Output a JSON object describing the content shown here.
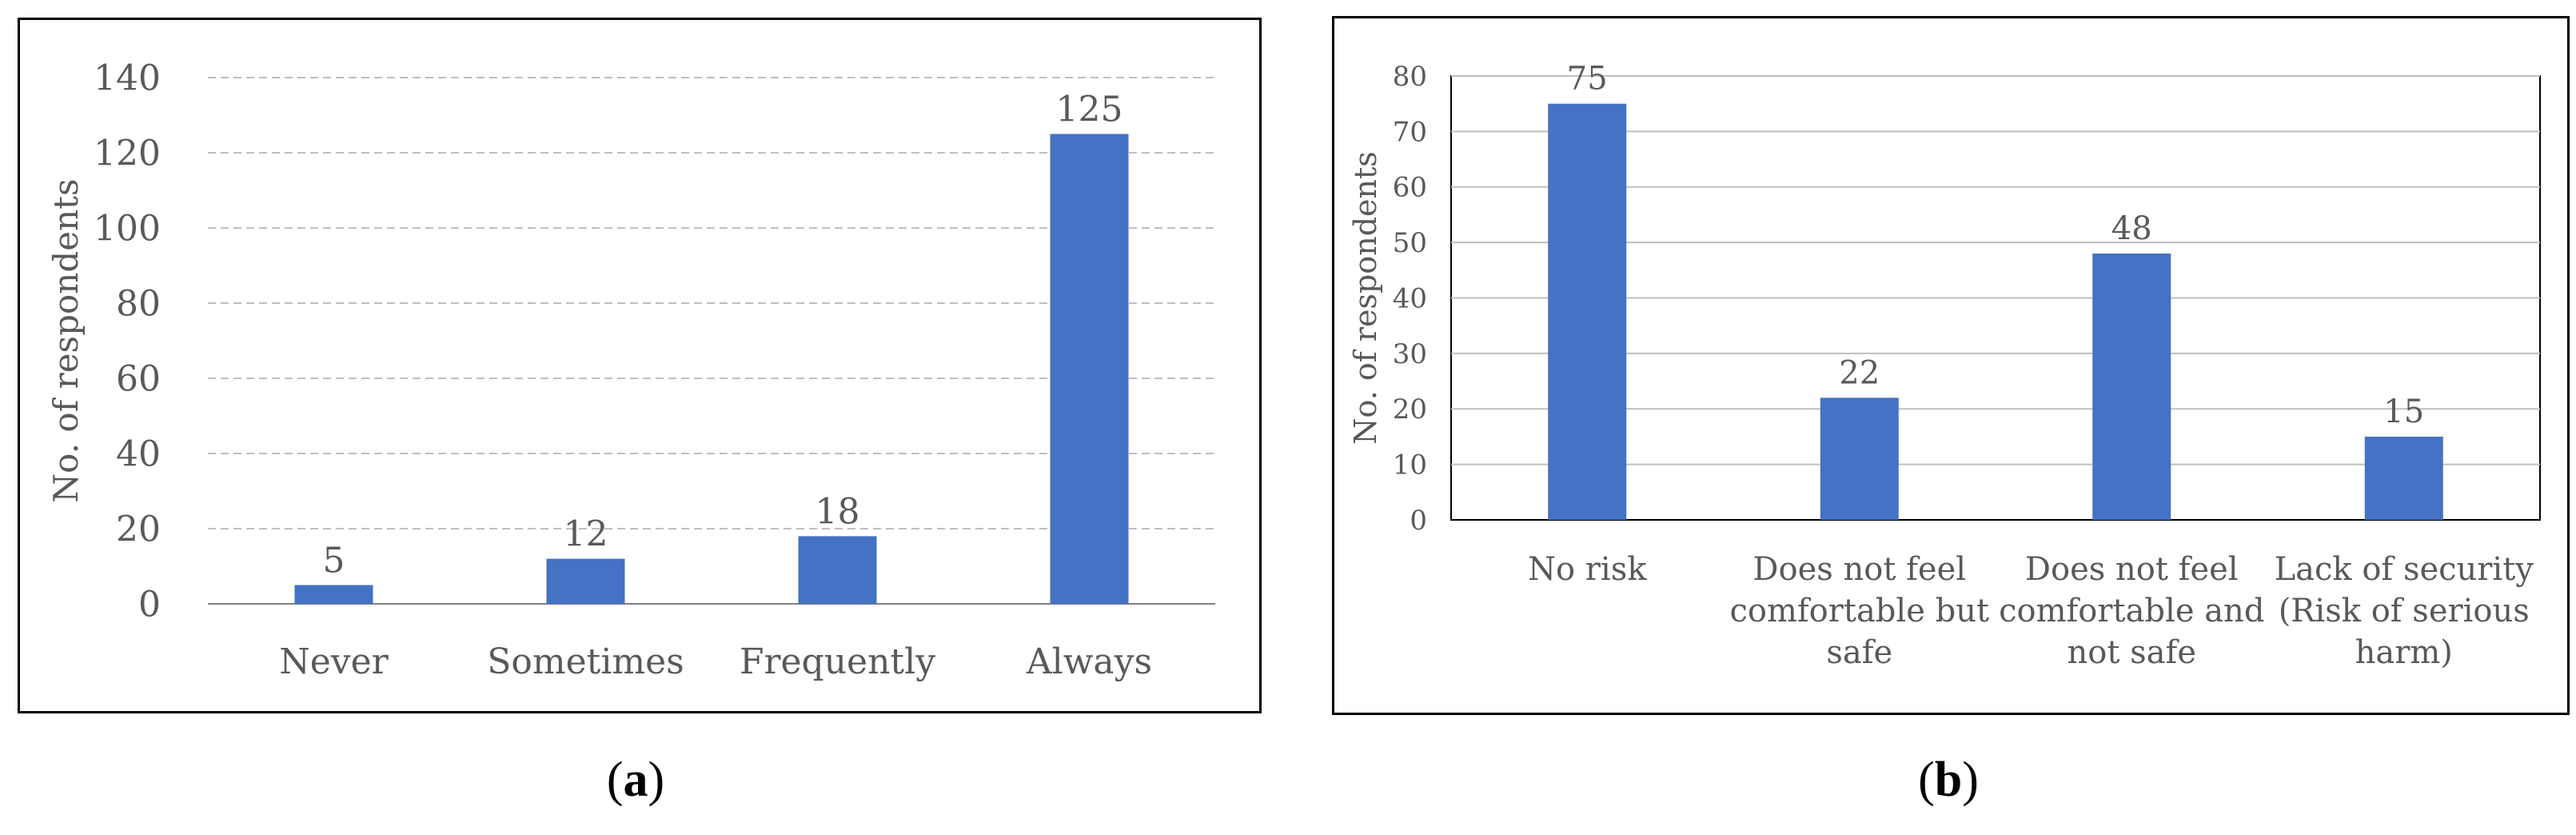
{
  "colors": {
    "bar": "#4472C4",
    "grid": "#bfbfbf",
    "axis": "#808080",
    "text": "#595959"
  },
  "captions": [
    {
      "open": "(",
      "letter": "a",
      "close": ")"
    },
    {
      "open": "(",
      "letter": "b",
      "close": ")"
    }
  ],
  "chart_data": [
    {
      "type": "bar",
      "categories": [
        "Never",
        "Sometimes",
        "Frequently",
        "Always"
      ],
      "values": [
        5,
        12,
        18,
        125
      ],
      "data_labels": [
        "5",
        "12",
        "18",
        "125"
      ],
      "title": "",
      "xlabel": "",
      "ylabel": "No. of respondents",
      "ylim": [
        0,
        140
      ],
      "yticks": [
        0,
        20,
        40,
        60,
        80,
        100,
        120,
        140
      ],
      "grid": true,
      "legend": "none"
    },
    {
      "type": "bar",
      "categories": [
        [
          "No risk"
        ],
        [
          "Does not feel",
          "comfortable but",
          "safe"
        ],
        [
          "Does not feel",
          "comfortable and",
          "not safe"
        ],
        [
          "Lack of security",
          "(Risk of serious",
          "harm)"
        ]
      ],
      "values": [
        75,
        22,
        48,
        15
      ],
      "data_labels": [
        "75",
        "22",
        "48",
        "15"
      ],
      "title": "",
      "xlabel": "",
      "ylabel": "No. of respondents",
      "ylim": [
        0,
        80
      ],
      "yticks": [
        0,
        10,
        20,
        30,
        40,
        50,
        60,
        70,
        80
      ],
      "grid": true,
      "legend": "none"
    }
  ]
}
